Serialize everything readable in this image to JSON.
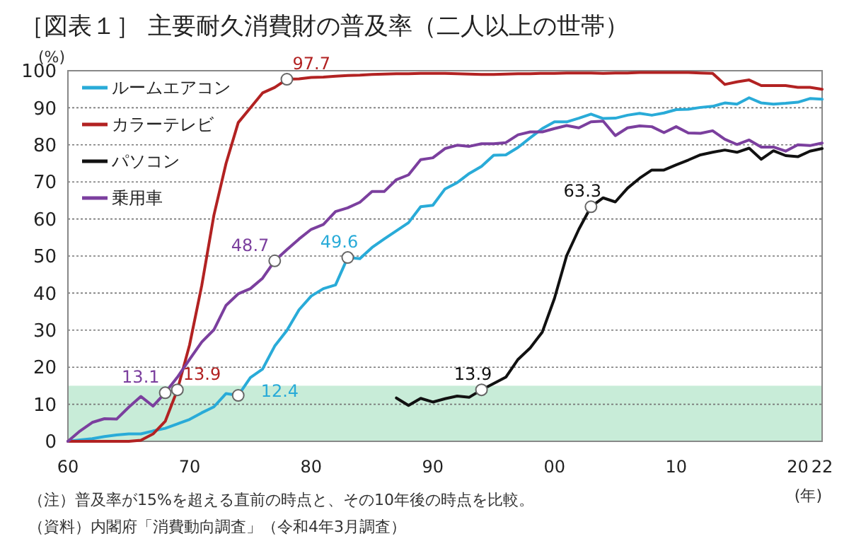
{
  "chart_data": {
    "type": "line",
    "title": "［図表１］ 主要耐久消費財の普及率（二人以上の世帯）",
    "ylabel": "(%)",
    "xlabel": "(年)",
    "x": [
      1960,
      1961,
      1962,
      1963,
      1964,
      1965,
      1966,
      1967,
      1968,
      1969,
      1970,
      1971,
      1972,
      1973,
      1974,
      1975,
      1976,
      1977,
      1978,
      1979,
      1980,
      1981,
      1982,
      1983,
      1984,
      1985,
      1986,
      1987,
      1988,
      1989,
      1990,
      1991,
      1992,
      1993,
      1994,
      1995,
      1996,
      1997,
      1998,
      1999,
      2000,
      2001,
      2002,
      2003,
      2004,
      2005,
      2006,
      2007,
      2008,
      2009,
      2010,
      2011,
      2012,
      2013,
      2014,
      2015,
      2016,
      2017,
      2018,
      2019,
      2020,
      2021,
      2022
    ],
    "series": [
      {
        "name": "ルームエアコン",
        "color": "#29abd8",
        "values": [
          0,
          0.4,
          0.7,
          1.3,
          1.7,
          2,
          2,
          2.8,
          3.5,
          4.7,
          5.9,
          7.7,
          9.3,
          12.9,
          12.4,
          17.2,
          19.5,
          25.7,
          29.9,
          35.5,
          39.2,
          41.2,
          42.2,
          49.6,
          49.3,
          52.3,
          54.6,
          56.8,
          59,
          63.3,
          63.7,
          68.1,
          69.8,
          72.3,
          74.2,
          77.2,
          77.3,
          79.3,
          81.9,
          84.4,
          86.2,
          86.2,
          87.2,
          88.3,
          87.1,
          87.2,
          88,
          88.5,
          88,
          88.6,
          89.5,
          89.6,
          90.1,
          90.4,
          91.3,
          91,
          92.7,
          91.3,
          91,
          91.2,
          91.5,
          92.5,
          92.3
        ]
      },
      {
        "name": "カラーテレビ",
        "color": "#b22222",
        "values": [
          0,
          0,
          0,
          0,
          0,
          0,
          0.3,
          2,
          5.4,
          13.9,
          26,
          42,
          61,
          75,
          86,
          90,
          94,
          95.5,
          97.7,
          97.8,
          98.2,
          98.3,
          98.5,
          98.7,
          98.8,
          99,
          99.1,
          99.2,
          99.2,
          99.3,
          99.3,
          99.3,
          99.2,
          99.1,
          99,
          99,
          99.1,
          99.2,
          99.2,
          99.3,
          99.3,
          99.4,
          99.4,
          99.4,
          99.3,
          99.4,
          99.4,
          99.5,
          99.5,
          99.5,
          99.5,
          99.5,
          99.4,
          99.3,
          96.3,
          97,
          97.5,
          96,
          96,
          96,
          95.5,
          95.5,
          95
        ]
      },
      {
        "name": "パソコン",
        "color": "#111111",
        "values": [
          null,
          null,
          null,
          null,
          null,
          null,
          null,
          null,
          null,
          null,
          null,
          null,
          null,
          null,
          null,
          null,
          null,
          null,
          null,
          null,
          null,
          null,
          null,
          null,
          null,
          null,
          null,
          11.7,
          9.7,
          11.6,
          10.6,
          11.5,
          12.2,
          11.9,
          13.9,
          15.6,
          17.3,
          22.1,
          25.2,
          29.5,
          38.6,
          50.1,
          57.2,
          63.3,
          65.7,
          64.6,
          68.3,
          71,
          73.2,
          73.2,
          74.6,
          75.9,
          77.3,
          78,
          78.6,
          78,
          79.1,
          76.1,
          78.4,
          77.1,
          76.8,
          78.3,
          79
        ]
      },
      {
        "name": "乗用車",
        "color": "#7b3f9e",
        "values": [
          0,
          2.8,
          5.1,
          6.1,
          6,
          9.2,
          12.1,
          9.5,
          13.1,
          17.3,
          22.1,
          26.8,
          30.1,
          36.7,
          39.8,
          41.2,
          44,
          48.7,
          51.7,
          54.6,
          57.2,
          58.5,
          62,
          63,
          64.5,
          67.4,
          67.4,
          70.6,
          71.9,
          76,
          76.5,
          79,
          79.9,
          79.6,
          80.3,
          80.3,
          80.6,
          82.7,
          83.5,
          83.5,
          84.4,
          85.2,
          84.6,
          86.2,
          86.4,
          82.5,
          84.6,
          85.1,
          84.9,
          83.3,
          84.9,
          83.2,
          83.1,
          83.8,
          81.5,
          80.1,
          81.3,
          79.4,
          79.4,
          78.3,
          80,
          79.8,
          80.5
        ]
      }
    ],
    "xlim": [
      1960,
      2022
    ],
    "xticks": [
      {
        "value": 1960,
        "label": "60"
      },
      {
        "value": 1970,
        "label": "70"
      },
      {
        "value": 1980,
        "label": "80"
      },
      {
        "value": 1990,
        "label": "90"
      },
      {
        "value": 2000,
        "label": "00"
      },
      {
        "value": 2010,
        "label": "10"
      },
      {
        "value": 2020,
        "label": "20"
      },
      {
        "value": 2022,
        "label": "22"
      }
    ],
    "ylim": [
      0,
      100
    ],
    "yticks": [
      0,
      10,
      20,
      30,
      40,
      50,
      60,
      70,
      80,
      90,
      100
    ],
    "grid": "y",
    "legend": "top left",
    "line_style": "solid",
    "bands": [
      {
        "axis": "y",
        "from": 0,
        "to": 15,
        "color": "#c8ecd8"
      }
    ],
    "annotations": [
      {
        "text": "13.1",
        "x": 1968,
        "y": 13.1
      },
      {
        "text": "13.9",
        "x": 1969,
        "y": 13.9
      },
      {
        "text": "12.4",
        "x": 1974,
        "y": 12.4
      },
      {
        "text": "48.7",
        "x": 1977,
        "y": 48.7
      },
      {
        "text": "49.6",
        "x": 1983,
        "y": 49.6
      },
      {
        "text": "97.7",
        "x": 1978,
        "y": 97.7
      },
      {
        "text": "13.9",
        "x": 1994,
        "y": 13.9
      },
      {
        "text": "63.3",
        "x": 2003,
        "y": 63.3
      },
      "（注）普及率が15%を超える直前の時点と、その10年後の時点を比較。",
      "（資料）内閣府「消費動向調査」（令和4年3月調査）"
    ]
  }
}
